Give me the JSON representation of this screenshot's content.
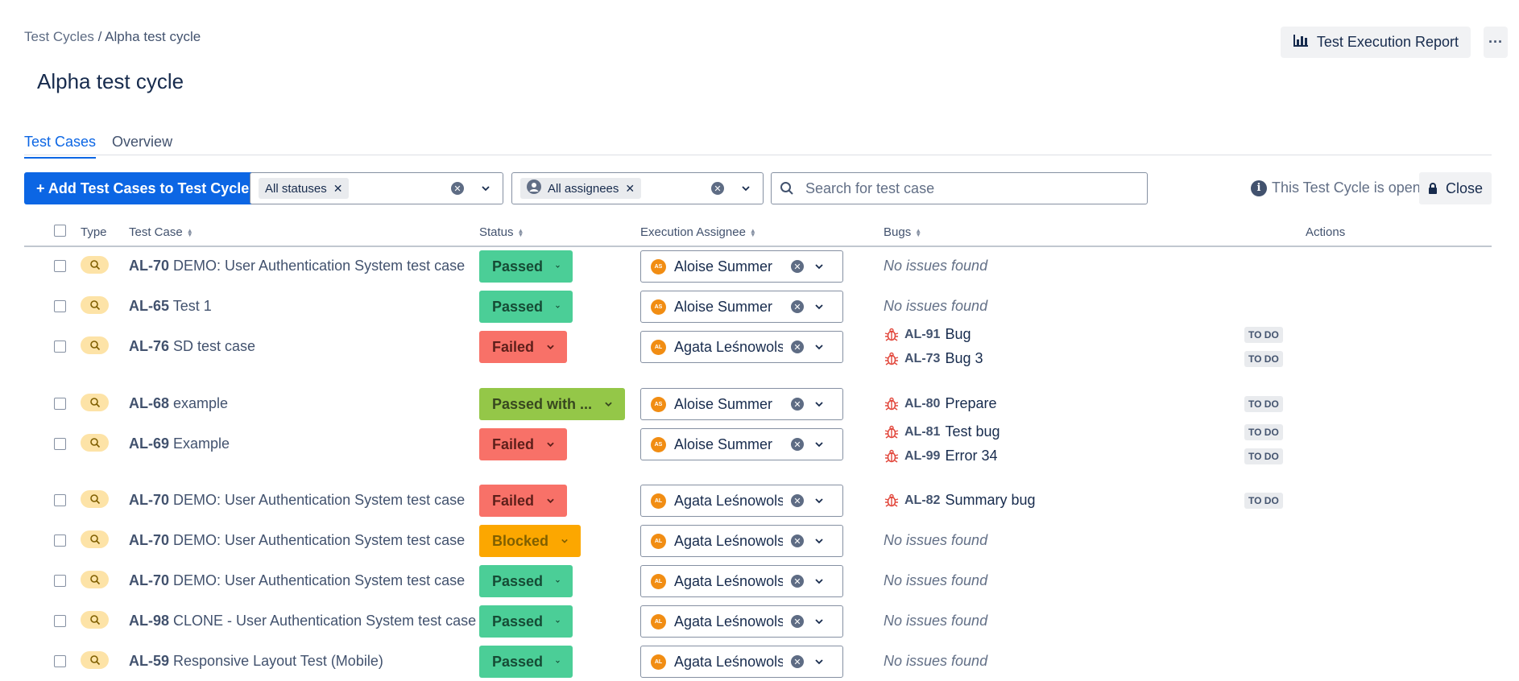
{
  "breadcrumb": {
    "parent": "Test Cycles",
    "separator": " / ",
    "current": "Alpha test cycle"
  },
  "page": {
    "title": "Alpha test cycle"
  },
  "header_actions": {
    "report_label": "Test Execution Report",
    "more_label": "···"
  },
  "tabs": [
    {
      "label": "Test Cases",
      "active": true
    },
    {
      "label": "Overview",
      "active": false
    }
  ],
  "toolbar": {
    "add_label": "+ Add Test Cases to Test Cycle",
    "status_filter_chip": "All statuses",
    "assignee_filter_chip": "All assignees",
    "search_placeholder": "Search for test case",
    "cycle_status": "This Test Cycle is open",
    "close_label": "Close"
  },
  "columns": {
    "type": "Type",
    "test_case": "Test Case",
    "status": "Status",
    "assignee": "Execution Assignee",
    "bugs": "Bugs",
    "actions": "Actions"
  },
  "status_colors": {
    "Passed": "#4bce97",
    "Failed": "#f87168",
    "Passed with ...": "#94c748",
    "Blocked": "#fca700"
  },
  "icons": {
    "type": "search-icon",
    "bug": "bug-icon",
    "report": "bar-chart-icon",
    "close": "lock-icon",
    "status": "info-icon"
  },
  "rows": [
    {
      "key": "AL-70",
      "name": "DEMO: User Authentication System test case",
      "status": "Passed",
      "assignee_initials": "AS",
      "assignee": "Aloise Summer",
      "no_issues": "No issues found",
      "bugs": []
    },
    {
      "key": "AL-65",
      "name": "Test 1",
      "status": "Passed",
      "assignee_initials": "AS",
      "assignee": "Aloise Summer",
      "no_issues": "No issues found",
      "bugs": []
    },
    {
      "key": "AL-76",
      "name": "SD test case",
      "status": "Failed",
      "assignee_initials": "AL",
      "assignee": "Agata Leśnowolsl",
      "no_issues": "",
      "bugs": [
        {
          "key": "AL-91",
          "summary": "Bug",
          "state": "TO DO"
        },
        {
          "key": "AL-73",
          "summary": "Bug 3",
          "state": "TO DO"
        }
      ]
    },
    {
      "key": "AL-68",
      "name": "example",
      "status": "Passed with ...",
      "assignee_initials": "AS",
      "assignee": "Aloise Summer",
      "no_issues": "",
      "bugs": [
        {
          "key": "AL-80",
          "summary": "Prepare",
          "state": "TO DO"
        }
      ]
    },
    {
      "key": "AL-69",
      "name": "Example",
      "status": "Failed",
      "assignee_initials": "AS",
      "assignee": "Aloise Summer",
      "no_issues": "",
      "bugs": [
        {
          "key": "AL-81",
          "summary": "Test bug",
          "state": "TO DO"
        },
        {
          "key": "AL-99",
          "summary": "Error 34",
          "state": "TO DO"
        }
      ]
    },
    {
      "key": "AL-70",
      "name": "DEMO: User Authentication System test case",
      "status": "Failed",
      "assignee_initials": "AL",
      "assignee": "Agata Leśnowolsl",
      "no_issues": "",
      "bugs": [
        {
          "key": "AL-82",
          "summary": "Summary bug",
          "state": "TO DO"
        }
      ]
    },
    {
      "key": "AL-70",
      "name": "DEMO: User Authentication System test case",
      "status": "Blocked",
      "assignee_initials": "AL",
      "assignee": "Agata Leśnowolsl",
      "no_issues": "No issues found",
      "bugs": []
    },
    {
      "key": "AL-70",
      "name": "DEMO: User Authentication System test case",
      "status": "Passed",
      "assignee_initials": "AL",
      "assignee": "Agata Leśnowolsl",
      "no_issues": "No issues found",
      "bugs": []
    },
    {
      "key": "AL-98",
      "name": "CLONE - User Authentication System test case",
      "status": "Passed",
      "assignee_initials": "AL",
      "assignee": "Agata Leśnowolsl",
      "no_issues": "No issues found",
      "bugs": []
    },
    {
      "key": "AL-59",
      "name": "Responsive Layout Test (Mobile)",
      "status": "Passed",
      "assignee_initials": "AL",
      "assignee": "Agata Leśnowolsl",
      "no_issues": "No issues found",
      "bugs": []
    }
  ]
}
